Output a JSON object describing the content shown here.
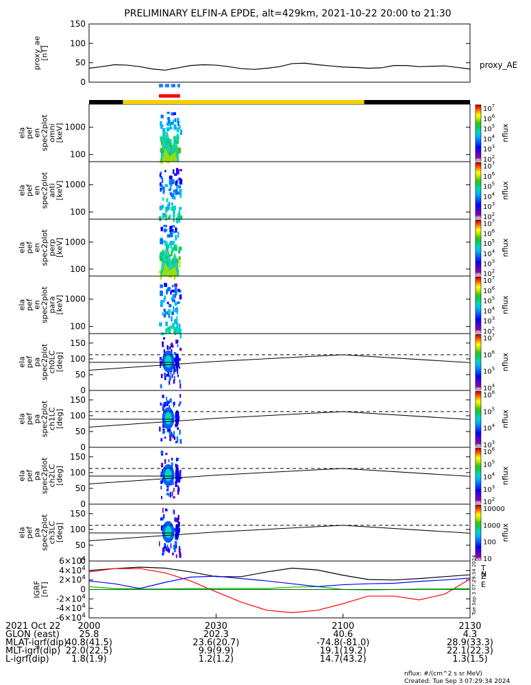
{
  "title": "PRELIMINARY ELFIN-A EPDE, alt=429km, 2021-10-22 20:00 to 21:30",
  "chart_data": [
    {
      "id": "proxy_ae",
      "type": "line",
      "ylabel": [
        "proxy_ae",
        "[nT]"
      ],
      "ylim": [
        0,
        150
      ],
      "yticks": [
        "150",
        "100",
        "50",
        "0"
      ],
      "yticks_values": [
        150,
        100,
        50,
        0
      ],
      "legend": "proxy_AE",
      "series": [
        {
          "name": "proxy_AE",
          "x": [
            0,
            3,
            6,
            9,
            12,
            15,
            18,
            21,
            24,
            27,
            30,
            33,
            36,
            39,
            42,
            45,
            48,
            51,
            54,
            57,
            60,
            63,
            66,
            69,
            72,
            75,
            78,
            81,
            84,
            87,
            90
          ],
          "y": [
            36,
            40,
            45,
            44,
            40,
            34,
            31,
            37,
            43,
            45,
            44,
            40,
            35,
            33,
            36,
            40,
            48,
            49,
            45,
            42,
            39,
            38,
            36,
            37,
            43,
            43,
            40,
            41,
            42,
            38,
            34
          ]
        }
      ]
    },
    {
      "id": "omni",
      "type": "heatmap",
      "ylabel": [
        "ela",
        "pef",
        "en",
        "spec2plot",
        "omni",
        "[keV]"
      ],
      "yscale": "log",
      "yticks": [
        "1000",
        "100"
      ],
      "colorbar": {
        "label": "nflux",
        "ticks": [
          "10^7",
          "10^6",
          "10^5",
          "10^4",
          "10^3",
          "10^2"
        ]
      }
    },
    {
      "id": "anti",
      "type": "heatmap",
      "ylabel": [
        "ela",
        "pef",
        "en",
        "spec2plot",
        "anti",
        "[keV]"
      ],
      "yscale": "log",
      "yticks": [
        "1000",
        "100"
      ],
      "colorbar": {
        "label": "nflux",
        "ticks": [
          "10^7",
          "10^6",
          "10^5",
          "10^4",
          "10^3",
          "10^2"
        ]
      }
    },
    {
      "id": "perp",
      "type": "heatmap",
      "ylabel": [
        "ela",
        "pef",
        "en",
        "spec2plot",
        "perp",
        "[keV]"
      ],
      "yscale": "log",
      "yticks": [
        "1000",
        "100"
      ],
      "colorbar": {
        "label": "nflux",
        "ticks": [
          "10^7",
          "10^6",
          "10^5",
          "10^4",
          "10^3",
          "10^2"
        ]
      }
    },
    {
      "id": "para",
      "type": "heatmap",
      "ylabel": [
        "ela",
        "pef",
        "en",
        "spec2plot",
        "para",
        "[keV]"
      ],
      "yscale": "log",
      "yticks": [
        "1000",
        "100"
      ],
      "colorbar": {
        "label": "nflux",
        "ticks": [
          "10^7",
          "10^6",
          "10^5",
          "10^4",
          "10^3",
          "10^2"
        ]
      }
    },
    {
      "id": "ch0LC",
      "type": "heatmap",
      "ylabel": [
        "ela",
        "pef",
        "pa",
        "spec2plot",
        "ch0LC",
        "[deg]"
      ],
      "ylim": [
        0,
        180
      ],
      "yticks": [
        "150",
        "100",
        "50",
        "0"
      ],
      "colorbar": {
        "label": "nflux",
        "ticks": [
          "10^7",
          "10^6",
          "10^5",
          "10^4"
        ]
      }
    },
    {
      "id": "ch1LC",
      "type": "heatmap",
      "ylabel": [
        "ela",
        "pef",
        "pa",
        "spec2plot",
        "ch1LC",
        "[deg]"
      ],
      "ylim": [
        0,
        180
      ],
      "yticks": [
        "150",
        "100",
        "50",
        "0"
      ],
      "colorbar": {
        "label": "nflux",
        "ticks": [
          "10^6",
          "10^5",
          "10^4",
          "10^3"
        ]
      }
    },
    {
      "id": "ch2LC",
      "type": "heatmap",
      "ylabel": [
        "ela",
        "pef",
        "pa",
        "spec2plot",
        "ch2LC",
        "[deg]"
      ],
      "ylim": [
        0,
        180
      ],
      "yticks": [
        "150",
        "100",
        "50",
        "0"
      ],
      "colorbar": {
        "label": "nflux",
        "ticks": [
          "10^6",
          "10^5",
          "10^4",
          "10^3",
          "10^2"
        ]
      }
    },
    {
      "id": "ch3LC",
      "type": "heatmap",
      "ylabel": [
        "ela",
        "pef",
        "pa",
        "spec2plot",
        "ch3LC",
        "[deg]"
      ],
      "ylim": [
        0,
        180
      ],
      "yticks": [
        "150",
        "100",
        "50",
        "0"
      ],
      "colorbar": {
        "label": "nflux",
        "ticks": [
          "10000",
          "1000",
          "100",
          "10"
        ]
      }
    },
    {
      "id": "igrf",
      "type": "line",
      "ylabel": [
        "IGRF",
        "[nT]"
      ],
      "ylim": [
        -60000,
        60000
      ],
      "yticks": [
        "6×10^4",
        "4×10^4",
        "2×10^4",
        "0",
        "−2×10^4",
        "−4×10^4",
        "−6×10^4"
      ],
      "yticks_values": [
        60000,
        40000,
        20000,
        0,
        -20000,
        -40000,
        -60000
      ],
      "legend": [
        "T",
        "N",
        "E",
        "Z"
      ],
      "series": [
        {
          "name": "T",
          "color": "#000000",
          "x": [
            0,
            6,
            12,
            18,
            24,
            30,
            36,
            42,
            48,
            54,
            60,
            66,
            72,
            78,
            84,
            90
          ],
          "y": [
            40000,
            44000,
            47000,
            45000,
            37000,
            27000,
            27000,
            37000,
            45000,
            41000,
            30000,
            21000,
            20000,
            23000,
            27000,
            31000
          ]
        },
        {
          "name": "N",
          "color": "#ff0000",
          "x": [
            0,
            6,
            12,
            18,
            24,
            30,
            36,
            42,
            48,
            54,
            60,
            66,
            72,
            78,
            84,
            90
          ],
          "y": [
            37000,
            44000,
            44000,
            35000,
            18000,
            -5000,
            -27000,
            -44000,
            -49000,
            -44000,
            -30000,
            -14000,
            -14000,
            -22000,
            -10000,
            22000
          ]
        },
        {
          "name": "E",
          "color": "#00c000",
          "x": [
            0,
            6,
            12,
            18,
            24,
            30,
            36,
            42,
            48,
            54,
            60,
            66,
            72,
            78,
            84,
            90
          ],
          "y": [
            6000,
            2000,
            1000,
            1000,
            2000,
            2000,
            2000,
            2000,
            5000,
            6000,
            0,
            -1000,
            0,
            1000,
            1000,
            2000
          ]
        },
        {
          "name": "Z",
          "color": "#0000ff",
          "x": [
            0,
            6,
            12,
            18,
            24,
            30,
            36,
            42,
            48,
            54,
            60,
            66,
            72,
            78,
            84,
            90
          ],
          "y": [
            18000,
            12000,
            2000,
            15000,
            26000,
            28000,
            23000,
            18000,
            12000,
            6000,
            10000,
            12000,
            13000,
            17000,
            20000,
            24000
          ]
        }
      ]
    }
  ],
  "reference_lines": {
    "solid": [
      {
        "x": [
          0,
          30,
          60,
          90
        ],
        "y": [
          64,
          92,
          113,
          88
        ]
      }
    ],
    "dashed": [
      {
        "y": 113
      }
    ],
    "horizontal_solid": [
      {
        "y": 89
      }
    ]
  },
  "orbit_bar": {
    "segments": [
      {
        "from": 0,
        "to": 8,
        "color": "#000000"
      },
      {
        "from": 8,
        "to": 65,
        "color": "#f2d000"
      },
      {
        "from": 65,
        "to": 90,
        "color": "#000000"
      }
    ],
    "markers": [
      {
        "from": 16.5,
        "to": 21.5,
        "color": "#1e7bff",
        "style": "dashed"
      },
      {
        "from": 16.5,
        "to": 21.5,
        "color": "#ff0000",
        "style": "solid"
      }
    ]
  },
  "x_axis": {
    "ticks": [
      {
        "t": 0,
        "label": "2000"
      },
      {
        "t": 30,
        "label": "2030"
      },
      {
        "t": 60,
        "label": "2100"
      },
      {
        "t": 90,
        "label": "2130"
      }
    ]
  },
  "ephemeris": {
    "labels": [
      "2021 Oct 22",
      "GLON (east)",
      "MLAT-igrf(dip)",
      "MLT-igrf(dip)",
      "L-igrf(dip)"
    ],
    "columns": [
      [
        "",
        "25.8",
        "40.8(41.5)",
        "22.0(22.5)",
        "1.8(1.9)"
      ],
      [
        "",
        "202.3",
        "23.6(20.7)",
        "9.9(9.9)",
        "1.2(1.2)"
      ],
      [
        "",
        "40.6",
        "-74.8(-81.0)",
        "19.1(19.2)",
        "14.7(43.2)"
      ],
      [
        "",
        "4.3",
        "28.9(33.3)",
        "22.1(22.3)",
        "1.3(1.5)"
      ]
    ]
  },
  "footer": {
    "units": "nflux: #/(cm^2 s sr MeV)",
    "created": "Created: Tue Sep  3 07:29:34 2024",
    "side_stamp": "Tue Sep  3 07:29:34 2024"
  },
  "colors": {
    "colorbar": [
      "#ffffff",
      "#b0b0b0",
      "#6a00a8",
      "#3a00d8",
      "#0000ff",
      "#0070ff",
      "#00b4ff",
      "#00d8c8",
      "#00d070",
      "#30c000",
      "#a0e000",
      "#ffff00",
      "#ffb000",
      "#ff5000",
      "#ff0000",
      "#b00000"
    ]
  }
}
